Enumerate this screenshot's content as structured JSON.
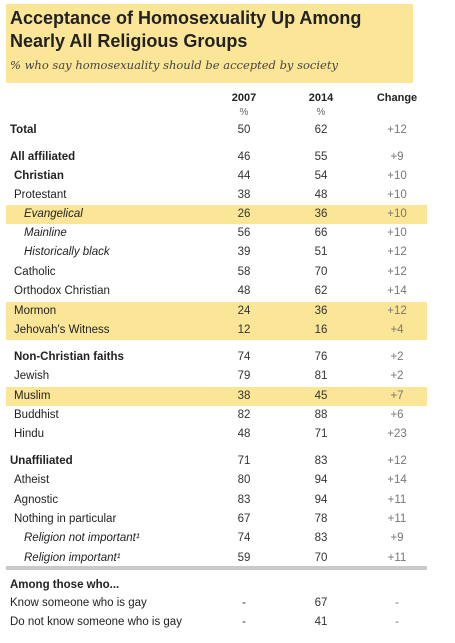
{
  "header": {
    "title": "Acceptance of Homosexuality Up Among Nearly All Religious Groups",
    "subtitle": "% who say homosexuality should be accepted by society"
  },
  "columns": {
    "y2007": "2007",
    "y2014": "2014",
    "change": "Change",
    "unit": "%"
  },
  "rows": [
    {
      "label": "Total",
      "v2007": "50",
      "v2014": "62",
      "change": "+12",
      "bold": true,
      "italic": false,
      "indent": 0,
      "highlight": false
    },
    {
      "label": "All affiliated",
      "v2007": "46",
      "v2014": "55",
      "change": "+9",
      "bold": true,
      "italic": false,
      "indent": 0,
      "highlight": false
    },
    {
      "label": "Christian",
      "v2007": "44",
      "v2014": "54",
      "change": "+10",
      "bold": true,
      "italic": false,
      "indent": 1,
      "highlight": false
    },
    {
      "label": "Protestant",
      "v2007": "38",
      "v2014": "48",
      "change": "+10",
      "bold": false,
      "italic": false,
      "indent": 1,
      "highlight": false
    },
    {
      "label": "Evangelical",
      "v2007": "26",
      "v2014": "36",
      "change": "+10",
      "bold": false,
      "italic": true,
      "indent": 2,
      "highlight": true
    },
    {
      "label": "Mainline",
      "v2007": "56",
      "v2014": "66",
      "change": "+10",
      "bold": false,
      "italic": true,
      "indent": 2,
      "highlight": false
    },
    {
      "label": "Historically black",
      "v2007": "39",
      "v2014": "51",
      "change": "+12",
      "bold": false,
      "italic": true,
      "indent": 2,
      "highlight": false
    },
    {
      "label": "Catholic",
      "v2007": "58",
      "v2014": "70",
      "change": "+12",
      "bold": false,
      "italic": false,
      "indent": 1,
      "highlight": false
    },
    {
      "label": "Orthodox Christian",
      "v2007": "48",
      "v2014": "62",
      "change": "+14",
      "bold": false,
      "italic": false,
      "indent": 1,
      "highlight": false
    },
    {
      "label": "Mormon",
      "v2007": "24",
      "v2014": "36",
      "change": "+12",
      "bold": false,
      "italic": false,
      "indent": 1,
      "highlight": true
    },
    {
      "label": "Jehovah's Witness",
      "v2007": "12",
      "v2014": "16",
      "change": "+4",
      "bold": false,
      "italic": false,
      "indent": 1,
      "highlight": true
    },
    {
      "label": "Non-Christian faiths",
      "v2007": "74",
      "v2014": "76",
      "change": "+2",
      "bold": true,
      "italic": false,
      "indent": 1,
      "highlight": false
    },
    {
      "label": "Jewish",
      "v2007": "79",
      "v2014": "81",
      "change": "+2",
      "bold": false,
      "italic": false,
      "indent": 1,
      "highlight": false
    },
    {
      "label": "Muslim",
      "v2007": "38",
      "v2014": "45",
      "change": "+7",
      "bold": false,
      "italic": false,
      "indent": 1,
      "highlight": true
    },
    {
      "label": "Buddhist",
      "v2007": "82",
      "v2014": "88",
      "change": "+6",
      "bold": false,
      "italic": false,
      "indent": 1,
      "highlight": false
    },
    {
      "label": "Hindu",
      "v2007": "48",
      "v2014": "71",
      "change": "+23",
      "bold": false,
      "italic": false,
      "indent": 1,
      "highlight": false
    },
    {
      "label": "Unaffiliated",
      "v2007": "71",
      "v2014": "83",
      "change": "+12",
      "bold": true,
      "italic": false,
      "indent": 0,
      "highlight": false
    },
    {
      "label": "Atheist",
      "v2007": "80",
      "v2014": "94",
      "change": "+14",
      "bold": false,
      "italic": false,
      "indent": 1,
      "highlight": false
    },
    {
      "label": "Agnostic",
      "v2007": "83",
      "v2014": "94",
      "change": "+11",
      "bold": false,
      "italic": false,
      "indent": 1,
      "highlight": false
    },
    {
      "label": "Nothing in particular",
      "v2007": "67",
      "v2014": "78",
      "change": "+11",
      "bold": false,
      "italic": false,
      "indent": 1,
      "highlight": false
    },
    {
      "label": "Religion not important¹",
      "v2007": "74",
      "v2014": "83",
      "change": "+9",
      "bold": false,
      "italic": true,
      "indent": 2,
      "highlight": false
    },
    {
      "label": "Religion important¹",
      "v2007": "59",
      "v2014": "70",
      "change": "+11",
      "bold": false,
      "italic": true,
      "indent": 2,
      "highlight": false
    },
    {
      "label": "Among those who...",
      "v2007": "",
      "v2014": "",
      "change": "",
      "bold": true,
      "italic": false,
      "indent": 0,
      "highlight": false
    },
    {
      "label": "Know someone who is gay",
      "v2007": "-",
      "v2014": "67",
      "change": "-",
      "bold": false,
      "italic": false,
      "indent": 0,
      "highlight": false
    },
    {
      "label": "Do not know someone who is gay",
      "v2007": "-",
      "v2014": "41",
      "change": "-",
      "bold": false,
      "italic": false,
      "indent": 0,
      "highlight": false
    }
  ],
  "colors": {
    "highlight": "#fbe596",
    "separator": "#c9c9c9"
  }
}
